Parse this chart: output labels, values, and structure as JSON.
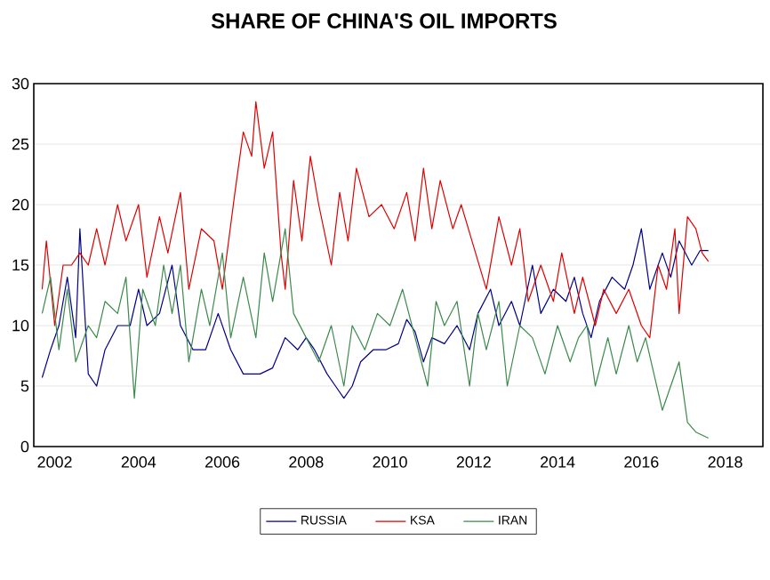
{
  "chart_data": {
    "type": "line",
    "title": "SHARE OF CHINA'S OIL IMPORTS",
    "xlim": [
      2001.5,
      2018.9
    ],
    "xticks": [
      2002,
      2004,
      2006,
      2008,
      2010,
      2012,
      2014,
      2016,
      2018
    ],
    "ylim": [
      0,
      30
    ],
    "yticks": [
      0,
      5,
      10,
      15,
      20,
      25,
      30
    ],
    "grid": "y",
    "legend": "bottom",
    "marker": "none",
    "line_style": "solid",
    "series": [
      {
        "name": "RUSSIA",
        "color": "#00008b",
        "x": [
          2001.7,
          2001.9,
          2002.1,
          2002.3,
          2002.5,
          2002.6,
          2002.8,
          2003.0,
          2003.2,
          2003.5,
          2003.8,
          2004.0,
          2004.2,
          2004.5,
          2004.8,
          2005.0,
          2005.3,
          2005.6,
          2005.9,
          2006.2,
          2006.5,
          2006.9,
          2007.2,
          2007.5,
          2007.8,
          2008.0,
          2008.2,
          2008.5,
          2008.7,
          2008.9,
          2009.1,
          2009.3,
          2009.6,
          2009.9,
          2010.2,
          2010.4,
          2010.6,
          2010.8,
          2011.0,
          2011.3,
          2011.6,
          2011.9,
          2012.1,
          2012.4,
          2012.6,
          2012.9,
          2013.1,
          2013.4,
          2013.6,
          2013.9,
          2014.2,
          2014.4,
          2014.6,
          2014.8,
          2015.0,
          2015.3,
          2015.6,
          2015.8,
          2016.0,
          2016.2,
          2016.5,
          2016.7,
          2016.9,
          2017.2,
          2017.4,
          2017.6
        ],
        "values": [
          5.7,
          8,
          10,
          14,
          9,
          18,
          6,
          5,
          8,
          10,
          10,
          13,
          10,
          11,
          15,
          10,
          8,
          8,
          11,
          8,
          6,
          6,
          6.5,
          9,
          8,
          9,
          8,
          6,
          5,
          4,
          5,
          7,
          8,
          8,
          8.5,
          10.5,
          9.5,
          7,
          9,
          8.5,
          10,
          8,
          11,
          13,
          10,
          12,
          10,
          15,
          11,
          13,
          12,
          14,
          11,
          9,
          12,
          14,
          13,
          15,
          18,
          13,
          16,
          14,
          17,
          15,
          16.2,
          16.2
        ]
      },
      {
        "name": "KSA",
        "color": "#e00000",
        "x": [
          2001.7,
          2001.8,
          2002.0,
          2002.2,
          2002.4,
          2002.6,
          2002.8,
          2003.0,
          2003.2,
          2003.5,
          2003.7,
          2004.0,
          2004.2,
          2004.5,
          2004.7,
          2005.0,
          2005.2,
          2005.5,
          2005.8,
          2006.0,
          2006.3,
          2006.5,
          2006.7,
          2006.8,
          2007.0,
          2007.2,
          2007.4,
          2007.5,
          2007.7,
          2007.9,
          2008.1,
          2008.3,
          2008.6,
          2008.8,
          2009.0,
          2009.2,
          2009.5,
          2009.8,
          2010.1,
          2010.4,
          2010.6,
          2010.8,
          2011.0,
          2011.2,
          2011.5,
          2011.7,
          2012.0,
          2012.3,
          2012.6,
          2012.9,
          2013.1,
          2013.3,
          2013.6,
          2013.9,
          2014.1,
          2014.4,
          2014.6,
          2014.9,
          2015.1,
          2015.4,
          2015.7,
          2016.0,
          2016.2,
          2016.4,
          2016.6,
          2016.8,
          2016.9,
          2017.1,
          2017.3,
          2017.45,
          2017.6
        ],
        "values": [
          13,
          17,
          10,
          15,
          15,
          16,
          15,
          18,
          15,
          20,
          17,
          20,
          14,
          19,
          16,
          21,
          13,
          18,
          17,
          13,
          21,
          26,
          24,
          28.5,
          23,
          26,
          16,
          13,
          22,
          17,
          24,
          20,
          15,
          21,
          17,
          23,
          19,
          20,
          18,
          21,
          17,
          23,
          18,
          22,
          18,
          20,
          16.5,
          13,
          19,
          15,
          18,
          12,
          15,
          12,
          16,
          11,
          14,
          10,
          13,
          11,
          13,
          10,
          9,
          15,
          13,
          18,
          11,
          19,
          18,
          16,
          15.3
        ]
      },
      {
        "name": "IRAN",
        "color": "#3a8a4a",
        "x": [
          2001.7,
          2001.9,
          2002.1,
          2002.3,
          2002.5,
          2002.8,
          2003.0,
          2003.2,
          2003.5,
          2003.7,
          2003.9,
          2004.1,
          2004.4,
          2004.6,
          2004.8,
          2005.0,
          2005.2,
          2005.5,
          2005.7,
          2006.0,
          2006.2,
          2006.5,
          2006.8,
          2007.0,
          2007.2,
          2007.5,
          2007.7,
          2008.0,
          2008.3,
          2008.6,
          2008.9,
          2009.1,
          2009.4,
          2009.7,
          2010.0,
          2010.3,
          2010.6,
          2010.9,
          2011.1,
          2011.3,
          2011.6,
          2011.9,
          2012.1,
          2012.3,
          2012.6,
          2012.8,
          2013.1,
          2013.4,
          2013.7,
          2014.0,
          2014.3,
          2014.5,
          2014.7,
          2014.9,
          2015.2,
          2015.4,
          2015.7,
          2015.9,
          2016.1,
          2016.3,
          2016.5,
          2016.7,
          2016.9,
          2017.1,
          2017.3,
          2017.6
        ],
        "values": [
          11,
          14,
          8,
          13,
          7,
          10,
          9,
          12,
          11,
          14,
          4,
          13,
          10,
          15,
          11,
          15,
          7,
          13,
          10,
          16,
          9,
          14,
          9,
          16,
          12,
          18,
          11,
          9,
          7,
          10,
          5,
          10,
          8,
          11,
          10,
          13,
          9,
          5,
          12,
          10,
          12,
          5,
          11,
          8,
          12,
          5,
          10,
          9,
          6,
          10,
          7,
          9,
          10,
          5,
          9,
          6,
          10,
          7,
          9,
          6,
          3,
          5,
          7,
          2,
          1.2,
          0.7
        ]
      }
    ]
  }
}
